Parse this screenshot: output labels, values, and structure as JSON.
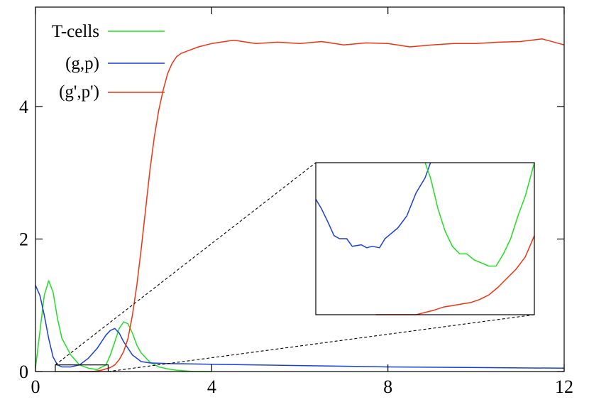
{
  "chart_data": {
    "type": "line",
    "title": "",
    "xlabel": "",
    "ylabel": "",
    "xlim": [
      0,
      12
    ],
    "ylim": [
      0,
      5.5
    ],
    "grid": false,
    "legend_position": "top-left",
    "x_ticks": [
      {
        "value": 0,
        "label": "0"
      },
      {
        "value": 4,
        "label": "4"
      },
      {
        "value": 8,
        "label": "8"
      },
      {
        "value": 12,
        "label": "12"
      }
    ],
    "y_ticks": [
      {
        "value": 0,
        "label": "0"
      },
      {
        "value": 2,
        "label": "2"
      },
      {
        "value": 4,
        "label": "4"
      }
    ],
    "series": [
      {
        "name": "T-cells",
        "color": "#22dd22",
        "x": [
          0,
          0.1,
          0.2,
          0.3,
          0.4,
          0.5,
          0.6,
          0.8,
          1.0,
          1.2,
          1.4,
          1.6,
          1.7,
          1.8,
          1.9,
          2.0,
          2.1,
          2.2,
          2.3,
          2.4,
          2.6,
          2.8,
          3.0,
          3.2,
          3.4,
          3.6,
          4.0
        ],
        "y": [
          0.05,
          0.6,
          1.15,
          1.37,
          1.2,
          0.8,
          0.5,
          0.25,
          0.1,
          0.05,
          0.03,
          0.1,
          0.25,
          0.45,
          0.65,
          0.75,
          0.72,
          0.58,
          0.4,
          0.28,
          0.14,
          0.07,
          0.04,
          0.02,
          0.01,
          0.0,
          0.0
        ]
      },
      {
        "name": "(g,p)",
        "color": "#1a3fd6",
        "x": [
          0,
          0.1,
          0.2,
          0.3,
          0.4,
          0.5,
          0.6,
          0.8,
          1.0,
          1.2,
          1.4,
          1.6,
          1.7,
          1.8,
          1.9,
          2.0,
          2.2,
          2.4,
          2.6,
          3.0,
          4.0,
          6.0,
          8.0,
          10.0,
          12.0
        ],
        "y": [
          1.3,
          1.15,
          0.85,
          0.5,
          0.22,
          0.1,
          0.07,
          0.07,
          0.1,
          0.2,
          0.35,
          0.55,
          0.62,
          0.65,
          0.58,
          0.45,
          0.25,
          0.15,
          0.13,
          0.12,
          0.11,
          0.09,
          0.07,
          0.06,
          0.05
        ]
      },
      {
        "name": "(g',p')",
        "color": "#ee3311",
        "x": [
          1.0,
          1.3,
          1.5,
          1.7,
          1.8,
          1.9,
          2.0,
          2.1,
          2.2,
          2.3,
          2.4,
          2.5,
          2.6,
          2.7,
          2.8,
          2.9,
          3.0,
          3.1,
          3.2,
          3.3,
          3.5,
          3.7,
          4.0,
          4.5,
          5.0,
          5.5,
          6.0,
          6.5,
          7.0,
          7.5,
          8.0,
          8.5,
          9.0,
          9.5,
          10.0,
          10.5,
          11.0,
          11.5,
          12.0
        ],
        "y": [
          0.0,
          0.0,
          0.02,
          0.06,
          0.1,
          0.18,
          0.3,
          0.5,
          0.85,
          1.3,
          1.85,
          2.45,
          3.05,
          3.55,
          3.95,
          4.25,
          4.5,
          4.65,
          4.75,
          4.8,
          4.85,
          4.9,
          4.95,
          5.0,
          4.95,
          4.97,
          4.95,
          4.98,
          4.93,
          4.96,
          4.95,
          4.9,
          4.93,
          4.95,
          4.95,
          4.97,
          4.98,
          5.02,
          4.93
        ]
      }
    ],
    "inset": {
      "source_xlim": [
        0.45,
        1.65
      ],
      "source_ylim": [
        0,
        0.1
      ],
      "series": [
        {
          "name": "(g,p)",
          "color": "#1a3fd6",
          "x": [
            0.45,
            0.48,
            0.52,
            0.55,
            0.58,
            0.62,
            0.65,
            0.7,
            0.73,
            0.76,
            0.8,
            0.83,
            0.86,
            0.9,
            0.95,
            1.0,
            1.05,
            1.08
          ],
          "y": [
            0.076,
            0.07,
            0.06,
            0.052,
            0.05,
            0.05,
            0.045,
            0.046,
            0.044,
            0.045,
            0.044,
            0.05,
            0.053,
            0.057,
            0.065,
            0.08,
            0.09,
            0.1
          ]
        },
        {
          "name": "T-cells",
          "color": "#22dd22",
          "x": [
            1.05,
            1.08,
            1.12,
            1.16,
            1.2,
            1.24,
            1.28,
            1.32,
            1.36,
            1.4,
            1.44,
            1.48,
            1.52,
            1.56,
            1.6,
            1.65
          ],
          "y": [
            0.1,
            0.09,
            0.07,
            0.055,
            0.045,
            0.04,
            0.04,
            0.036,
            0.034,
            0.032,
            0.032,
            0.04,
            0.05,
            0.065,
            0.078,
            0.1
          ]
        },
        {
          "name": "(g',p')",
          "color": "#ee3311",
          "x": [
            0.78,
            0.9,
            1.0,
            1.1,
            1.15,
            1.2,
            1.25,
            1.3,
            1.35,
            1.4,
            1.45,
            1.5,
            1.55,
            1.6,
            1.65
          ],
          "y": [
            0.0,
            0.0,
            0.0,
            0.003,
            0.005,
            0.006,
            0.007,
            0.008,
            0.01,
            0.013,
            0.018,
            0.024,
            0.03,
            0.038,
            0.052
          ]
        }
      ]
    }
  }
}
